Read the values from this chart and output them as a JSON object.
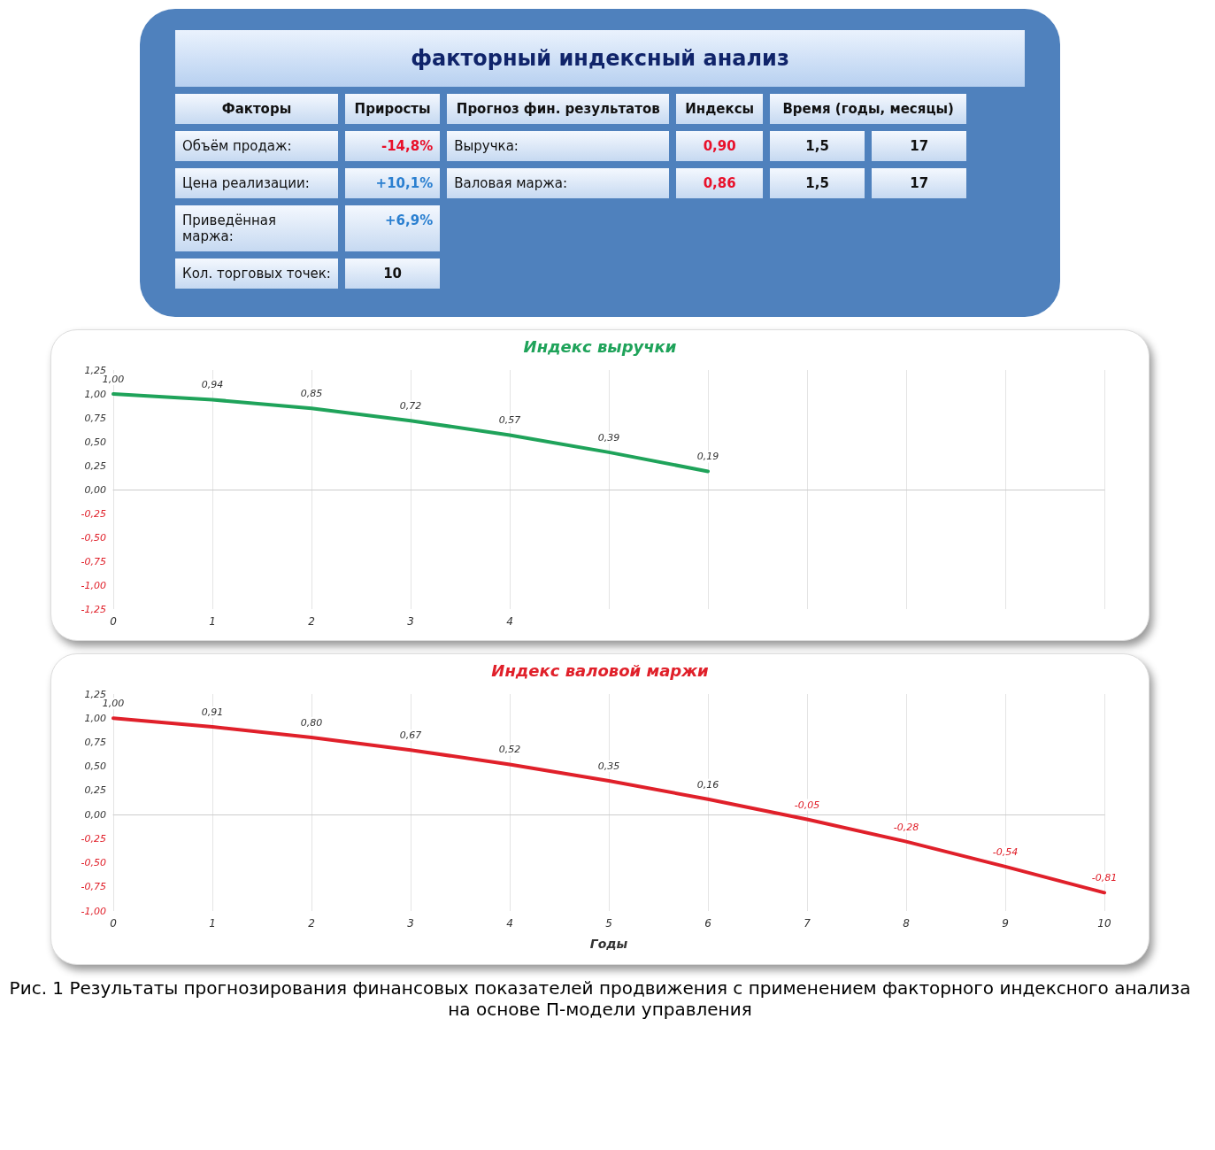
{
  "chart_data": [
    {
      "type": "other",
      "title": "факторный индексный анализ",
      "annotations": [
        "Факторы",
        "Приросты",
        "Прогноз фин. результатов",
        "Индексы",
        "Время (годы, месяцы)",
        "Объём продаж:",
        "-14,8%",
        "Выручка:",
        "0,90",
        "1,5",
        "17",
        "Цена реализации:",
        "+10,1%",
        "Валовая маржа:",
        "0,86",
        "1,5",
        "17",
        "Приведённая маржа:",
        "+6,9%",
        "Кол. торговых точек:",
        "10"
      ]
    },
    {
      "type": "line",
      "title": "Индекс выручки",
      "categories": [
        "0",
        "1",
        "2",
        "3",
        "4",
        null,
        null,
        null,
        null,
        null,
        null
      ],
      "series": [
        {
          "color": "#1fa35a",
          "values": [
            1.0,
            0.94,
            0.85,
            0.72,
            0.57,
            0.39,
            0.19,
            null,
            null,
            null,
            null
          ],
          "value_labels": [
            "1,00",
            "0,94",
            "0,85",
            "0,72",
            "0,57",
            "0,39",
            "0,19",
            null,
            null,
            null,
            null
          ]
        }
      ],
      "ylim": [
        -1.25,
        1.25
      ],
      "yticks": [
        {
          "value": -1.25,
          "label": "-1,25"
        },
        {
          "value": -1,
          "label": "-1,00"
        },
        {
          "value": -0.75,
          "label": "-0,75"
        },
        {
          "value": -0.5,
          "label": "-0,50"
        },
        {
          "value": -0.25,
          "label": "-0,25"
        },
        {
          "value": 0,
          "label": "0,00"
        },
        {
          "value": 0.25,
          "label": "0,25"
        },
        {
          "value": 0.5,
          "label": "0,50"
        },
        {
          "value": 0.75,
          "label": "0,75"
        },
        {
          "value": 1,
          "label": "1,00"
        },
        {
          "value": 1.25,
          "label": "1,25"
        }
      ],
      "grid": "x",
      "marker": "none"
    },
    {
      "type": "line",
      "title": "Индекс валовой маржи",
      "xlabel": "Годы",
      "categories": [
        "0",
        "1",
        "2",
        "3",
        "4",
        "5",
        "6",
        "7",
        "8",
        "9",
        "10"
      ],
      "series": [
        {
          "color": "#e0202a",
          "values": [
            1.0,
            0.91,
            0.8,
            0.67,
            0.52,
            0.35,
            0.16,
            -0.05,
            -0.28,
            -0.54,
            -0.81
          ],
          "value_labels": [
            "1,00",
            "0,91",
            "0,80",
            "0,67",
            "0,52",
            "0,35",
            "0,16",
            "-0,05",
            "-0,28",
            "-0,54",
            "-0,81"
          ]
        }
      ],
      "ylim": [
        -1,
        1.25
      ],
      "yticks": [
        {
          "value": -1,
          "label": "-1,00"
        },
        {
          "value": -0.75,
          "label": "-0,75"
        },
        {
          "value": -0.5,
          "label": "-0,50"
        },
        {
          "value": -0.25,
          "label": "-0,25"
        },
        {
          "value": 0,
          "label": "0,00"
        },
        {
          "value": 0.25,
          "label": "0,25"
        },
        {
          "value": 0.5,
          "label": "0,50"
        },
        {
          "value": 0.75,
          "label": "0,75"
        },
        {
          "value": 1,
          "label": "1,00"
        },
        {
          "value": 1.25,
          "label": "1,25"
        }
      ],
      "grid": "x",
      "marker": "none",
      "annotations": [
        "Рис. 1 Результаты прогнозирования финансовых показателей продвижения с применением факторного индексного анализа на основе П-модели управления"
      ]
    }
  ]
}
